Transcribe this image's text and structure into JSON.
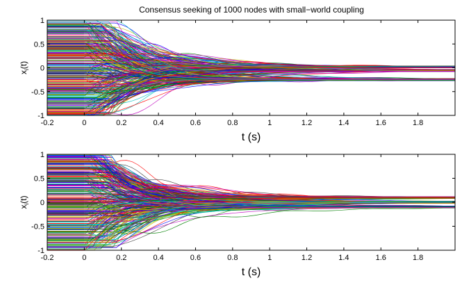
{
  "chart_data": [
    {
      "type": "line",
      "title": "Consensus seeking of 1000 nodes with small−world coupling",
      "xlabel": "t (s)",
      "ylabel": {
        "base": "x",
        "sub": "i",
        "suffix": "(t)"
      },
      "xlim": [
        -0.2,
        2.0
      ],
      "ylim": [
        -1,
        1
      ],
      "xticks": [
        "-0.2",
        "0",
        "0.2",
        "0.4",
        "0.6",
        "0.8",
        "1",
        "1.2",
        "1.4",
        "1.6",
        "1.8"
      ],
      "yticks": [
        "-1",
        "-0.5",
        "0",
        "0.5",
        "1"
      ],
      "node_count": 1000,
      "initial_range": [
        -1,
        1
      ],
      "converged_levels": [
        -0.25,
        -0.06,
        0.02
      ],
      "grid": false
    },
    {
      "type": "line",
      "title": "",
      "xlabel": "t (s)",
      "ylabel": {
        "base": "x",
        "sub": "i",
        "suffix": "(t)"
      },
      "xlim": [
        -0.2,
        2.0
      ],
      "ylim": [
        -1,
        1
      ],
      "xticks": [
        "-0.2",
        "0",
        "0.2",
        "0.4",
        "0.6",
        "0.8",
        "1",
        "1.2",
        "1.4",
        "1.6",
        "1.8"
      ],
      "yticks": [
        "-1",
        "-0.5",
        "0",
        "0.5",
        "1"
      ],
      "node_count": 1000,
      "initial_range": [
        -1,
        1
      ],
      "converged_levels": [
        -0.1,
        0.0,
        0.1
      ],
      "grid": false
    }
  ],
  "colors": [
    "#0000ff",
    "#008000",
    "#ff0000",
    "#00bfbf",
    "#bf00bf",
    "#bfbf00",
    "#404040"
  ]
}
